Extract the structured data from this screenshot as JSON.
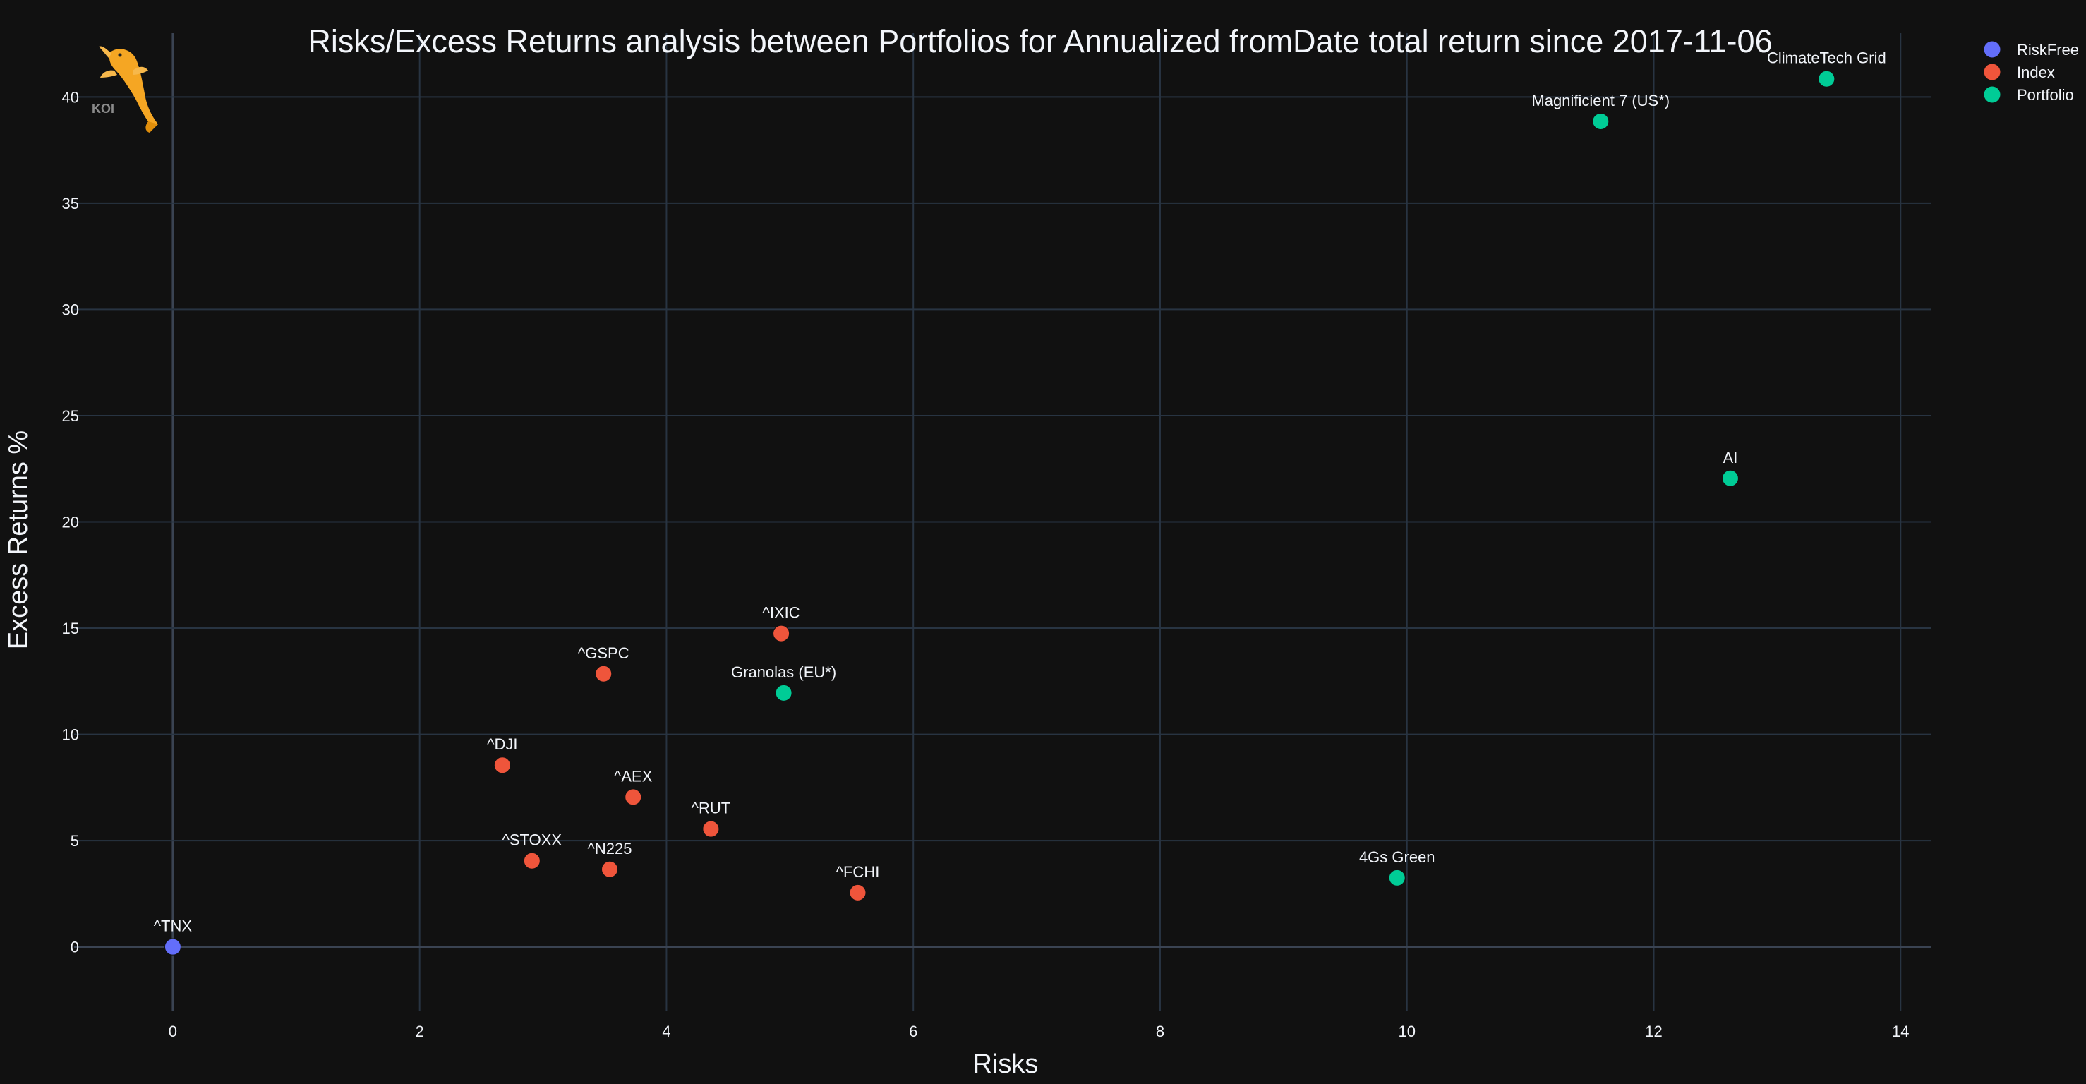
{
  "chart_data": {
    "type": "scatter",
    "title": "Risks/Excess Returns analysis between Portfolios for Annualized fromDate total return since 2017-11-06",
    "xlabel": "Risks",
    "ylabel": "Excess Returns %",
    "xlim": [
      -0.8,
      14.25
    ],
    "ylim": [
      -3,
      43
    ],
    "x_ticks": [
      0,
      2,
      4,
      6,
      8,
      10,
      12,
      14
    ],
    "y_ticks": [
      0,
      5,
      10,
      15,
      20,
      25,
      30,
      35,
      40
    ],
    "grid": true,
    "legend_position": "top-right",
    "series": [
      {
        "name": "RiskFree",
        "color": "#636efa",
        "points": [
          {
            "label": "^TNX",
            "x": 0,
            "y": 0
          }
        ]
      },
      {
        "name": "Index",
        "color": "#ef553b",
        "points": [
          {
            "label": "^IXIC",
            "x": 4.93,
            "y": 14.75
          },
          {
            "label": "^GSPC",
            "x": 3.49,
            "y": 12.85
          },
          {
            "label": "^DJI",
            "x": 2.67,
            "y": 8.55
          },
          {
            "label": "^AEX",
            "x": 3.73,
            "y": 7.05
          },
          {
            "label": "^RUT",
            "x": 4.36,
            "y": 5.55
          },
          {
            "label": "^STOXX",
            "x": 2.91,
            "y": 4.05
          },
          {
            "label": "^N225",
            "x": 3.54,
            "y": 3.65
          },
          {
            "label": "^FCHI",
            "x": 5.55,
            "y": 2.55
          }
        ]
      },
      {
        "name": "Portfolio",
        "color": "#00cc96",
        "points": [
          {
            "label": "ClimateTech Grid",
            "x": 13.4,
            "y": 40.85
          },
          {
            "label": "Magnificient 7 (US*)",
            "x": 11.57,
            "y": 38.85
          },
          {
            "label": "AI",
            "x": 12.62,
            "y": 22.05
          },
          {
            "label": "Granolas (EU*)",
            "x": 4.95,
            "y": 11.95
          },
          {
            "label": "4Gs Green",
            "x": 9.92,
            "y": 3.25
          }
        ]
      }
    ]
  },
  "logo": {
    "text": "KOI",
    "icon": "koi-fish-icon"
  }
}
